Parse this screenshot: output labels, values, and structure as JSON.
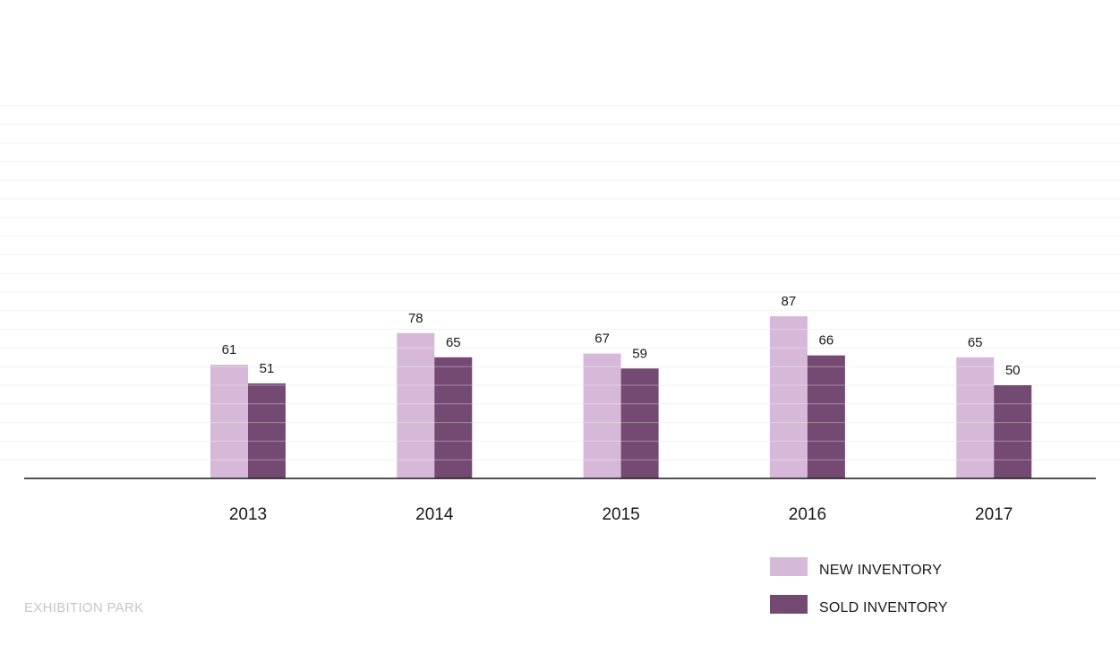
{
  "footer": {
    "label": "EXHIBITION PARK"
  },
  "colors": {
    "new": "#d6b8d8",
    "sold": "#744a72",
    "axis": "#1a1a1a",
    "grid": "#f2f2f2"
  },
  "legend": {
    "items": [
      {
        "label": "NEW INVENTORY",
        "color": "#d6b8d8"
      },
      {
        "label": "SOLD INVENTORY",
        "color": "#744a72"
      }
    ]
  },
  "chart_data": {
    "type": "bar",
    "categories": [
      "2013",
      "2014",
      "2015",
      "2016",
      "2017"
    ],
    "series": [
      {
        "name": "NEW INVENTORY",
        "values": [
          61,
          78,
          67,
          87,
          65
        ]
      },
      {
        "name": "SOLD INVENTORY",
        "values": [
          51,
          65,
          59,
          66,
          50
        ]
      }
    ],
    "title": "",
    "xlabel": "",
    "ylabel": "",
    "ylim": [
      0,
      200
    ],
    "grid": true,
    "legend_position": "bottom-right",
    "data_labels": true
  }
}
